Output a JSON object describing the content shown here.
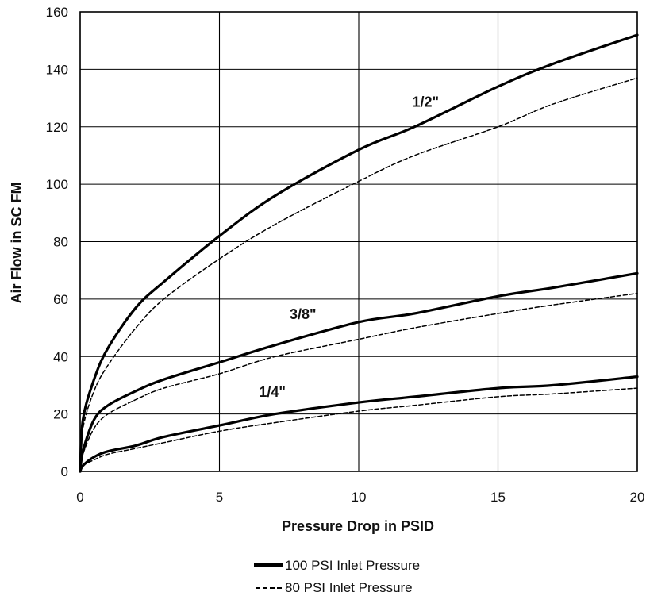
{
  "chart_data": {
    "type": "line",
    "title": "",
    "xlabel": "Pressure Drop in PSID",
    "ylabel": "Air Flow in SC FM",
    "xlim": [
      0,
      20
    ],
    "ylim": [
      0,
      160
    ],
    "xticks": [
      0,
      5,
      10,
      15,
      20
    ],
    "yticks": [
      0,
      20,
      40,
      60,
      80,
      100,
      120,
      140,
      160
    ],
    "grid": true,
    "legend_position": "bottom-center",
    "legend": [
      {
        "label": "100 PSI Inlet Pressure",
        "style": "solid"
      },
      {
        "label": "80 PSI Inlet Pressure",
        "style": "dashed"
      }
    ],
    "curve_labels": [
      {
        "text": "1/2\"",
        "x": 12.4,
        "y": 127
      },
      {
        "text": "3/8\"",
        "x": 8.0,
        "y": 53
      },
      {
        "text": "1/4\"",
        "x": 6.9,
        "y": 26
      }
    ],
    "series": [
      {
        "size": "1/2\"",
        "inlet": "100 PSI",
        "style": "solid",
        "points": [
          [
            0,
            0
          ],
          [
            0.1,
            18
          ],
          [
            0.5,
            32
          ],
          [
            1,
            43
          ],
          [
            2,
            57
          ],
          [
            3,
            66
          ],
          [
            5,
            82
          ],
          [
            7,
            96
          ],
          [
            10,
            112
          ],
          [
            12,
            120
          ],
          [
            15,
            134
          ],
          [
            17,
            142
          ],
          [
            20,
            152
          ]
        ]
      },
      {
        "size": "1/2\"",
        "inlet": "80 PSI",
        "style": "dashed",
        "points": [
          [
            0,
            0
          ],
          [
            0.1,
            15
          ],
          [
            0.5,
            28
          ],
          [
            1,
            37
          ],
          [
            2,
            50
          ],
          [
            3,
            60
          ],
          [
            5,
            74
          ],
          [
            7,
            86
          ],
          [
            10,
            101
          ],
          [
            12,
            110
          ],
          [
            15,
            120
          ],
          [
            17,
            128
          ],
          [
            20,
            137
          ]
        ]
      },
      {
        "size": "3/8\"",
        "inlet": "100 PSI",
        "style": "solid",
        "points": [
          [
            0,
            0
          ],
          [
            0.1,
            7
          ],
          [
            0.5,
            18
          ],
          [
            1,
            23
          ],
          [
            2,
            28
          ],
          [
            3,
            32
          ],
          [
            5,
            38
          ],
          [
            7,
            44
          ],
          [
            10,
            52
          ],
          [
            12,
            55
          ],
          [
            15,
            61
          ],
          [
            17,
            64
          ],
          [
            20,
            69
          ]
        ]
      },
      {
        "size": "3/8\"",
        "inlet": "80 PSI",
        "style": "dashed",
        "points": [
          [
            0,
            0
          ],
          [
            0.1,
            6
          ],
          [
            0.5,
            15
          ],
          [
            1,
            20
          ],
          [
            2,
            25
          ],
          [
            3,
            29
          ],
          [
            5,
            34
          ],
          [
            7,
            40
          ],
          [
            10,
            46
          ],
          [
            12,
            50
          ],
          [
            15,
            55
          ],
          [
            17,
            58
          ],
          [
            20,
            62
          ]
        ]
      },
      {
        "size": "1/4\"",
        "inlet": "100 PSI",
        "style": "solid",
        "points": [
          [
            0,
            0
          ],
          [
            0.1,
            2
          ],
          [
            0.5,
            5
          ],
          [
            1,
            7
          ],
          [
            2,
            9
          ],
          [
            3,
            12
          ],
          [
            5,
            16
          ],
          [
            7,
            20
          ],
          [
            10,
            24
          ],
          [
            12,
            26
          ],
          [
            15,
            29
          ],
          [
            17,
            30
          ],
          [
            20,
            33
          ]
        ]
      },
      {
        "size": "1/4\"",
        "inlet": "80 PSI",
        "style": "dashed",
        "points": [
          [
            0,
            0
          ],
          [
            0.1,
            2
          ],
          [
            0.5,
            4
          ],
          [
            1,
            6
          ],
          [
            2,
            8
          ],
          [
            3,
            10
          ],
          [
            5,
            14
          ],
          [
            7,
            17
          ],
          [
            10,
            21
          ],
          [
            12,
            23
          ],
          [
            15,
            26
          ],
          [
            17,
            27
          ],
          [
            20,
            29
          ]
        ]
      }
    ]
  }
}
